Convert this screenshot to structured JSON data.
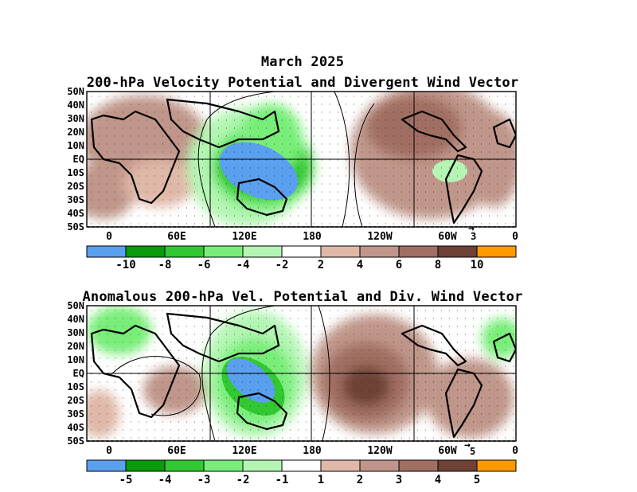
{
  "figure": {
    "title_line1": "March 2025",
    "panel1_title": "200-hPa Velocity Potential and Divergent Wind Vector",
    "panel2_title": "Anomalous 200-hPa Vel. Potential and Div. Wind Vector"
  },
  "axes": {
    "lat_labels": [
      "50N",
      "40N",
      "30N",
      "20N",
      "10N",
      "EQ",
      "10S",
      "20S",
      "30S",
      "40S",
      "50S"
    ],
    "lon_labels": [
      "0",
      "60E",
      "120E",
      "180",
      "120W",
      "60W",
      "0"
    ]
  },
  "panel1": {
    "ref_vector_value": "3",
    "colorbar": {
      "colors": [
        "#5aa0ee",
        "#0a9a0a",
        "#32c832",
        "#78ee78",
        "#b4f5b4",
        "#ffffff",
        "#e0b8a8",
        "#c0968a",
        "#a06e62",
        "#6e4236",
        "#ff9900"
      ],
      "labels": [
        "-10",
        "-8",
        "-6",
        "-4",
        "-2",
        "2",
        "4",
        "6",
        "8",
        "10"
      ]
    }
  },
  "panel2": {
    "ref_vector_value": "5",
    "colorbar": {
      "colors": [
        "#5aa0ee",
        "#0a9a0a",
        "#32c832",
        "#78ee78",
        "#b4f5b4",
        "#ffffff",
        "#e0b8a8",
        "#c0968a",
        "#a06e62",
        "#6e4236",
        "#ff9900"
      ],
      "labels": [
        "-5",
        "-4",
        "-3",
        "-2",
        "-1",
        "1",
        "2",
        "3",
        "4",
        "5"
      ]
    }
  }
}
